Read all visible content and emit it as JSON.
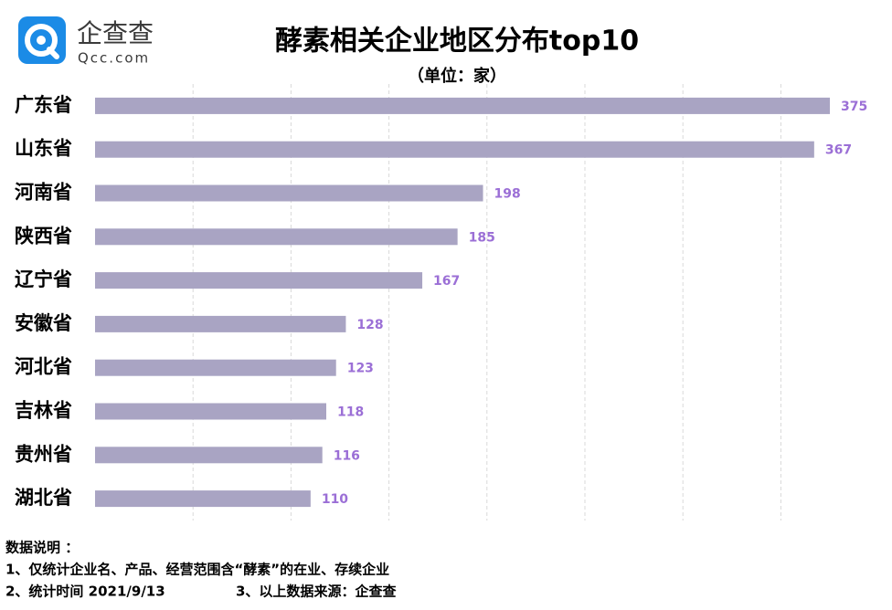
{
  "logo": {
    "name": "企查查",
    "site": "Qcc.com"
  },
  "chart_data": {
    "type": "hbar",
    "title": "酵素相关企业地区分布top10",
    "subtitle": "（单位：家）",
    "categories": [
      "广东省",
      "山东省",
      "河南省",
      "陕西省",
      "辽宁省",
      "安徽省",
      "河北省",
      "吉林省",
      "贵州省",
      "湖北省"
    ],
    "values": [
      375,
      367,
      198,
      185,
      167,
      128,
      123,
      118,
      116,
      110
    ],
    "color": "#a9a4c3",
    "label_color": "#9b6fd6",
    "xlim": [
      0,
      400
    ],
    "xticks": [
      50,
      100,
      150,
      200,
      250,
      300,
      350
    ],
    "grid": true
  },
  "notes": [
    "数据说明 ：",
    "1、仅统计企业名、产品、经营范围含“酵素”的在业、存续企业",
    "2、统计时间 2021/9/13",
    "3、以上数据来源：企查查"
  ]
}
